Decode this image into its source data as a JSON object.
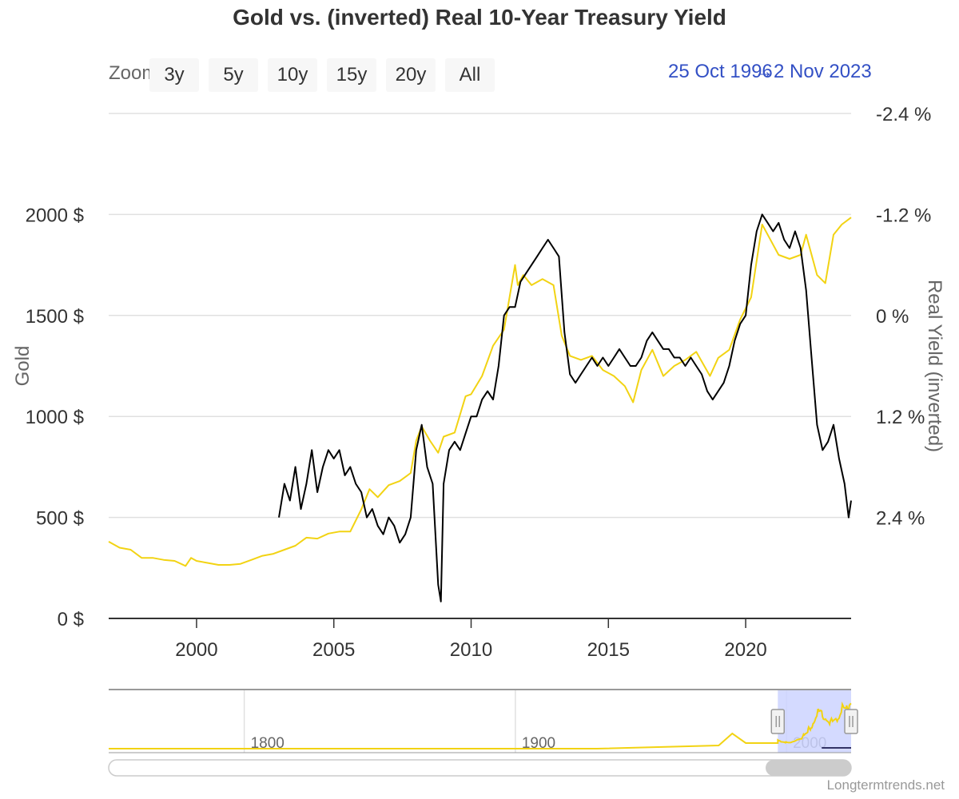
{
  "title": "Gold vs. (inverted) Real 10-Year Treasury Yield",
  "zoom": {
    "label": "Zoom",
    "buttons": [
      "3y",
      "5y",
      "10y",
      "15y",
      "20y",
      "All"
    ]
  },
  "range": {
    "from": "25 Oct 1996",
    "separator": "→",
    "to": "2 Nov 2023"
  },
  "credit": "Longtermtrends.net",
  "colors": {
    "gold": "#f2d313",
    "yield": "#000000",
    "grid": "#e0e0e0",
    "nav_fill": "#ccd3ff"
  },
  "chart_data": {
    "type": "line",
    "title": "Gold vs. (inverted) Real 10-Year Treasury Yield",
    "xlabel": "",
    "x_range": [
      1996.8,
      2023.84
    ],
    "x_ticks": [
      2000,
      2005,
      2010,
      2015,
      2020
    ],
    "x_tick_labels": [
      "2000",
      "2005",
      "2010",
      "2015",
      "2020"
    ],
    "left_axis": {
      "title": "Gold",
      "range": [
        0,
        2500
      ],
      "ticks": [
        0,
        500,
        1000,
        1500,
        2000
      ],
      "tick_labels": [
        "0 $",
        "500 $",
        "1000 $",
        "1500 $",
        "2000 $"
      ]
    },
    "right_axis": {
      "title": "Real Yield (inverted)",
      "inverted": true,
      "range": [
        3.6,
        -2.4
      ],
      "ticks": [
        -2.4,
        -1.2,
        0,
        1.2,
        2.4
      ],
      "tick_labels": [
        "-2.4 %",
        "-1.2 %",
        "0 %",
        "1.2 %",
        "2.4 %"
      ]
    },
    "series": [
      {
        "name": "Gold",
        "axis": "left",
        "x": [
          1996.8,
          1997.2,
          1997.6,
          1998.0,
          1998.4,
          1998.8,
          1999.2,
          1999.6,
          1999.8,
          2000.0,
          2000.4,
          2000.8,
          2001.2,
          2001.6,
          2002.0,
          2002.4,
          2002.8,
          2003.2,
          2003.6,
          2004.0,
          2004.4,
          2004.8,
          2005.2,
          2005.6,
          2006.0,
          2006.3,
          2006.6,
          2007.0,
          2007.4,
          2007.8,
          2008.0,
          2008.2,
          2008.5,
          2008.8,
          2009.0,
          2009.4,
          2009.8,
          2010.0,
          2010.4,
          2010.8,
          2011.2,
          2011.6,
          2011.7,
          2011.9,
          2012.2,
          2012.6,
          2013.0,
          2013.3,
          2013.6,
          2014.0,
          2014.4,
          2014.8,
          2015.2,
          2015.6,
          2015.9,
          2016.2,
          2016.6,
          2017.0,
          2017.4,
          2017.8,
          2018.2,
          2018.7,
          2019.0,
          2019.4,
          2019.8,
          2020.2,
          2020.6,
          2020.8,
          2021.2,
          2021.6,
          2022.0,
          2022.2,
          2022.6,
          2022.9,
          2023.2,
          2023.5,
          2023.84
        ],
        "values": [
          380,
          350,
          340,
          300,
          300,
          290,
          285,
          260,
          300,
          285,
          275,
          265,
          265,
          270,
          290,
          310,
          320,
          340,
          360,
          400,
          395,
          420,
          430,
          430,
          540,
          640,
          600,
          660,
          680,
          720,
          880,
          950,
          880,
          820,
          900,
          920,
          1100,
          1110,
          1200,
          1350,
          1430,
          1750,
          1650,
          1700,
          1650,
          1680,
          1650,
          1400,
          1300,
          1280,
          1300,
          1230,
          1200,
          1150,
          1070,
          1230,
          1330,
          1200,
          1250,
          1280,
          1320,
          1200,
          1290,
          1330,
          1480,
          1590,
          1950,
          1900,
          1800,
          1780,
          1800,
          1900,
          1700,
          1660,
          1900,
          1950,
          1985
        ]
      },
      {
        "name": "Real Yield (inverted)",
        "axis": "right",
        "x": [
          2003.0,
          2003.2,
          2003.4,
          2003.6,
          2003.8,
          2004.0,
          2004.2,
          2004.4,
          2004.6,
          2004.8,
          2005.0,
          2005.2,
          2005.4,
          2005.6,
          2005.8,
          2006.0,
          2006.2,
          2006.4,
          2006.6,
          2006.8,
          2007.0,
          2007.2,
          2007.4,
          2007.6,
          2007.8,
          2008.0,
          2008.2,
          2008.4,
          2008.6,
          2008.8,
          2008.9,
          2009.0,
          2009.2,
          2009.4,
          2009.6,
          2009.8,
          2010.0,
          2010.2,
          2010.4,
          2010.6,
          2010.8,
          2011.0,
          2011.2,
          2011.4,
          2011.6,
          2011.8,
          2012.0,
          2012.2,
          2012.4,
          2012.6,
          2012.8,
          2013.0,
          2013.2,
          2013.4,
          2013.6,
          2013.8,
          2014.0,
          2014.2,
          2014.4,
          2014.6,
          2014.8,
          2015.0,
          2015.2,
          2015.4,
          2015.6,
          2015.8,
          2016.0,
          2016.2,
          2016.4,
          2016.6,
          2016.8,
          2017.0,
          2017.2,
          2017.4,
          2017.6,
          2017.8,
          2018.0,
          2018.2,
          2018.4,
          2018.6,
          2018.8,
          2019.0,
          2019.2,
          2019.4,
          2019.6,
          2019.8,
          2020.0,
          2020.2,
          2020.4,
          2020.6,
          2020.8,
          2021.0,
          2021.2,
          2021.4,
          2021.6,
          2021.8,
          2022.0,
          2022.2,
          2022.4,
          2022.6,
          2022.8,
          2023.0,
          2023.2,
          2023.4,
          2023.6,
          2023.75,
          2023.84
        ],
        "values": [
          2.4,
          2.0,
          2.2,
          1.8,
          2.3,
          2.0,
          1.6,
          2.1,
          1.8,
          1.6,
          1.7,
          1.6,
          1.9,
          1.8,
          2.0,
          2.1,
          2.4,
          2.3,
          2.5,
          2.6,
          2.4,
          2.5,
          2.7,
          2.6,
          2.4,
          1.6,
          1.3,
          1.8,
          2.0,
          3.2,
          3.4,
          2.0,
          1.6,
          1.5,
          1.6,
          1.4,
          1.2,
          1.2,
          1.0,
          0.9,
          1.0,
          0.6,
          0.0,
          -0.1,
          -0.1,
          -0.4,
          -0.5,
          -0.6,
          -0.7,
          -0.8,
          -0.9,
          -0.8,
          -0.7,
          0.2,
          0.7,
          0.8,
          0.7,
          0.6,
          0.5,
          0.6,
          0.5,
          0.6,
          0.5,
          0.4,
          0.5,
          0.6,
          0.6,
          0.5,
          0.3,
          0.2,
          0.3,
          0.4,
          0.4,
          0.5,
          0.5,
          0.6,
          0.5,
          0.6,
          0.7,
          0.9,
          1.0,
          0.9,
          0.8,
          0.6,
          0.3,
          0.1,
          0.0,
          -0.6,
          -1.0,
          -1.2,
          -1.1,
          -1.0,
          -1.1,
          -0.9,
          -0.8,
          -1.0,
          -0.8,
          -0.3,
          0.5,
          1.3,
          1.6,
          1.5,
          1.3,
          1.7,
          2.0,
          2.4,
          2.2
        ]
      }
    ],
    "navigator": {
      "x_tick_labels": [
        "1800",
        "1900",
        "2000"
      ],
      "x_ticks": [
        1800,
        1900,
        2000
      ],
      "x_range": [
        1750,
        2023.84
      ],
      "selected": [
        1996.8,
        2023.84
      ]
    }
  }
}
